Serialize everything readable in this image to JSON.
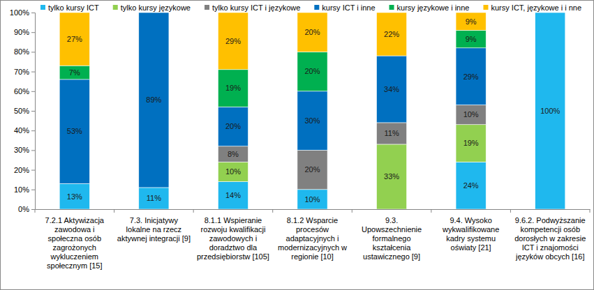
{
  "chart_data": {
    "type": "bar",
    "stacked": true,
    "data_labels": true,
    "legend": "top",
    "grid": false,
    "categories": [
      "7.2.1 Aktywizacja zawodowa i społeczna osób zagrożonych wykluczeniem społecznym [15]",
      "7.3. Inicjatywy lokalne na rzecz aktywnej integracji [9]",
      "8.1.1 Wspieranie rozwoju kwalifikacji zawodowych i doradztwo dla przedsiębiorstw [105]",
      "8.1.2 Wsparcie procesów adaptacyjnych i modernizacyjnych w regionie [10]",
      "9.3. Upowszechnienie formalnego kształcenia ustawicznego [9]",
      "9.4. Wysoko wykwalifikowane kadry systemu oświaty [21]",
      "9.6.2. Podwyższanie kompetencji osób dorosłych w zakresie ICT i znajomości języków obcych [16]"
    ],
    "series": [
      {
        "name": "tylko kursy ICT",
        "color": "#1fb8ee",
        "values": [
          13,
          11,
          14,
          10,
          0,
          24,
          100
        ],
        "value_labels": [
          "13%",
          "11%",
          "14%",
          "10%",
          null,
          "24%",
          "100%"
        ]
      },
      {
        "name": "tylko kursy językowe",
        "color": "#92d050",
        "values": [
          0,
          0,
          10,
          0,
          33,
          19,
          0
        ],
        "value_labels": [
          null,
          null,
          "10%",
          null,
          "33%",
          "19%",
          null
        ]
      },
      {
        "name": "tylko kursy ICT i językowe",
        "color": "#808080",
        "values": [
          0,
          0,
          8,
          20,
          11,
          10,
          0
        ],
        "value_labels": [
          null,
          null,
          "8%",
          "20%",
          "11%",
          "10%",
          null
        ]
      },
      {
        "name": "kursy ICT i inne",
        "color": "#0070c0",
        "values": [
          53,
          89,
          20,
          30,
          34,
          29,
          0
        ],
        "value_labels": [
          "53%",
          "89%",
          "20%",
          "30%",
          "34%",
          "29%",
          null
        ]
      },
      {
        "name": "kursy językowe i inne",
        "color": "#00b050",
        "values": [
          7,
          0,
          19,
          20,
          0,
          9,
          0
        ],
        "value_labels": [
          "7%",
          null,
          "19%",
          "20%",
          null,
          "9%",
          null
        ]
      },
      {
        "name": "kursy ICT, językowe i i nne",
        "color": "#ffc000",
        "values": [
          27,
          0,
          29,
          20,
          22,
          9,
          0
        ],
        "value_labels": [
          "27%",
          null,
          "29%",
          "20%",
          "22%",
          "9%",
          null
        ]
      }
    ],
    "ylim": [
      0,
      100
    ],
    "yticks": [
      {
        "value": 0,
        "label": "0%"
      },
      {
        "value": 10,
        "label": "10%"
      },
      {
        "value": 20,
        "label": "20%"
      },
      {
        "value": 30,
        "label": "30%"
      },
      {
        "value": 40,
        "label": "40%"
      },
      {
        "value": 50,
        "label": "50%"
      },
      {
        "value": 60,
        "label": "60%"
      },
      {
        "value": 70,
        "label": "70%"
      },
      {
        "value": 80,
        "label": "80%"
      },
      {
        "value": 90,
        "label": "90%"
      },
      {
        "value": 100,
        "label": "100%"
      }
    ]
  }
}
